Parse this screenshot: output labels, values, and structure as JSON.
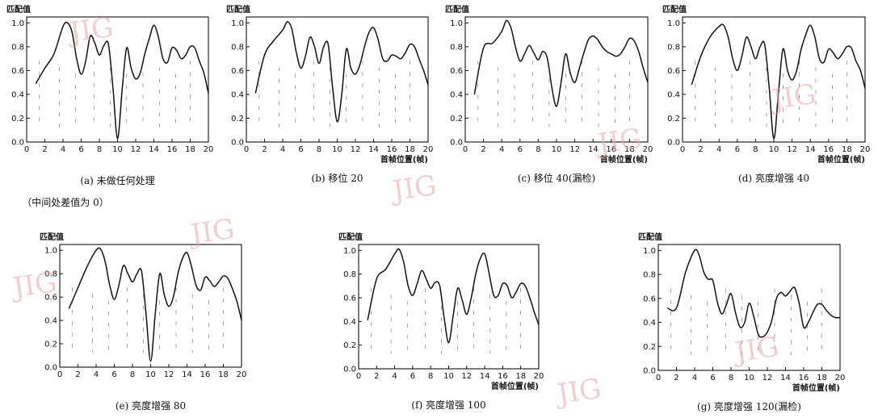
{
  "chart_data": [
    {
      "type": "line",
      "ylabel": "匹配值",
      "xlabel": "",
      "caption": "(a) 未做任何处理",
      "caption2": "（中间处差值为 0）",
      "x_ticks": [
        "0",
        "2",
        "4",
        "6",
        "8",
        "10",
        "12",
        "14",
        "16",
        "18",
        "20"
      ],
      "y_ticks": [
        "0.0",
        "0.2",
        "0.4",
        "0.6",
        "0.8",
        "1.0"
      ],
      "xlim": [
        0,
        20
      ],
      "ylim": [
        0,
        1.05
      ],
      "x": [
        1,
        2,
        3,
        4,
        4.5,
        5,
        5.5,
        6,
        6.5,
        7,
        7.5,
        8,
        8.5,
        9,
        9.5,
        10,
        10.5,
        11,
        11.5,
        12,
        12.5,
        13,
        13.5,
        14,
        14.5,
        15,
        15.5,
        16,
        16.5,
        17,
        17.5,
        18,
        18.5,
        19,
        19.5,
        20
      ],
      "y": [
        0.49,
        0.62,
        0.74,
        0.97,
        1.0,
        0.92,
        0.7,
        0.57,
        0.68,
        0.89,
        0.83,
        0.73,
        0.81,
        0.82,
        0.45,
        0.03,
        0.43,
        0.79,
        0.62,
        0.53,
        0.58,
        0.74,
        0.87,
        0.98,
        0.88,
        0.7,
        0.67,
        0.79,
        0.77,
        0.7,
        0.73,
        0.8,
        0.79,
        0.68,
        0.58,
        0.41
      ]
    },
    {
      "type": "line",
      "ylabel": "匹配值",
      "xlabel": "首帧位置(帧)",
      "caption": "(b) 移位 20",
      "x_ticks": [
        "0",
        "2",
        "4",
        "6",
        "8",
        "10",
        "12",
        "14",
        "16",
        "18",
        "20"
      ],
      "y_ticks": [
        "0.0",
        "0.2",
        "0.4",
        "0.6",
        "0.8",
        "1.0"
      ],
      "xlim": [
        0,
        20
      ],
      "ylim": [
        0,
        1.05
      ],
      "x": [
        1,
        2,
        3,
        4,
        4.5,
        5,
        5.5,
        6,
        6.5,
        7,
        7.5,
        8,
        8.5,
        9,
        9.5,
        10,
        10.5,
        11,
        11.5,
        12,
        12.5,
        13,
        13.5,
        14,
        14.5,
        15,
        15.5,
        16,
        16.5,
        17,
        17.5,
        18,
        18.5,
        19,
        19.5,
        20
      ],
      "y": [
        0.41,
        0.73,
        0.85,
        0.94,
        1.01,
        0.95,
        0.75,
        0.62,
        0.72,
        0.88,
        0.8,
        0.66,
        0.8,
        0.82,
        0.45,
        0.17,
        0.4,
        0.78,
        0.62,
        0.57,
        0.65,
        0.8,
        0.92,
        0.96,
        0.86,
        0.7,
        0.68,
        0.73,
        0.72,
        0.7,
        0.75,
        0.82,
        0.8,
        0.7,
        0.6,
        0.48
      ]
    },
    {
      "type": "line",
      "ylabel": "匹配值",
      "xlabel": "首帧位置(帧)",
      "caption": "(c) 移位 40(漏检)",
      "x_ticks": [
        "0",
        "2",
        "4",
        "6",
        "8",
        "10",
        "12",
        "14",
        "16",
        "18",
        "20"
      ],
      "y_ticks": [
        "0.0",
        "0.2",
        "0.4",
        "0.6",
        "0.8",
        "1.0"
      ],
      "xlim": [
        0,
        20
      ],
      "ylim": [
        0,
        1.05
      ],
      "x": [
        1,
        2,
        3,
        4,
        4.5,
        5,
        5.5,
        6,
        6.5,
        7,
        7.5,
        8,
        8.5,
        9,
        9.5,
        10,
        10.5,
        11,
        11.5,
        12,
        12.5,
        13,
        13.5,
        14,
        14.5,
        15,
        15.5,
        16,
        16.5,
        17,
        17.5,
        18,
        18.5,
        19,
        19.5,
        20
      ],
      "y": [
        0.4,
        0.79,
        0.83,
        0.93,
        1.02,
        0.96,
        0.8,
        0.68,
        0.74,
        0.81,
        0.75,
        0.69,
        0.76,
        0.7,
        0.45,
        0.3,
        0.5,
        0.74,
        0.58,
        0.5,
        0.62,
        0.75,
        0.86,
        0.89,
        0.86,
        0.8,
        0.76,
        0.74,
        0.72,
        0.74,
        0.8,
        0.87,
        0.85,
        0.76,
        0.62,
        0.5
      ]
    },
    {
      "type": "line",
      "ylabel": "匹配值",
      "xlabel": "首帧位置(帧)",
      "caption": "(d) 亮度增强 40",
      "x_ticks": [
        "0",
        "2",
        "4",
        "6",
        "8",
        "10",
        "12",
        "14",
        "16",
        "18",
        "20"
      ],
      "y_ticks": [
        "0.0",
        "0.2",
        "0.4",
        "0.6",
        "0.8",
        "1.0"
      ],
      "xlim": [
        0,
        20
      ],
      "ylim": [
        0,
        1.05
      ],
      "x": [
        1,
        2,
        3,
        4,
        4.5,
        5,
        5.5,
        6,
        6.5,
        7,
        7.5,
        8,
        8.5,
        9,
        9.5,
        10,
        10.5,
        11,
        11.5,
        12,
        12.5,
        13,
        13.5,
        14,
        14.5,
        15,
        15.5,
        16,
        16.5,
        17,
        17.5,
        18,
        18.5,
        19,
        19.5,
        20
      ],
      "y": [
        0.48,
        0.72,
        0.88,
        0.97,
        0.98,
        0.88,
        0.7,
        0.6,
        0.72,
        0.88,
        0.8,
        0.7,
        0.8,
        0.82,
        0.45,
        0.03,
        0.4,
        0.78,
        0.6,
        0.52,
        0.6,
        0.78,
        0.9,
        0.98,
        0.88,
        0.7,
        0.67,
        0.78,
        0.75,
        0.7,
        0.74,
        0.8,
        0.79,
        0.68,
        0.6,
        0.45
      ]
    },
    {
      "type": "line",
      "ylabel": "匹配值",
      "xlabel": "",
      "caption": "(e) 亮度增强 80",
      "x_ticks": [
        "0",
        "2",
        "4",
        "6",
        "8",
        "10",
        "12",
        "14",
        "16",
        "18",
        "20"
      ],
      "y_ticks": [
        "0.0",
        "0.2",
        "0.4",
        "0.6",
        "0.8",
        "1.0"
      ],
      "xlim": [
        0,
        20
      ],
      "ylim": [
        0,
        1.05
      ],
      "x": [
        1,
        2,
        3,
        4,
        4.5,
        5,
        5.5,
        6,
        6.5,
        7,
        7.5,
        8,
        8.5,
        9,
        9.5,
        10,
        10.5,
        11,
        11.5,
        12,
        12.5,
        13,
        13.5,
        14,
        14.5,
        15,
        15.5,
        16,
        16.5,
        17,
        17.5,
        18,
        18.5,
        19,
        19.5,
        20
      ],
      "y": [
        0.5,
        0.68,
        0.86,
        1.0,
        1.01,
        0.9,
        0.7,
        0.58,
        0.7,
        0.87,
        0.8,
        0.73,
        0.8,
        0.82,
        0.45,
        0.05,
        0.45,
        0.8,
        0.62,
        0.52,
        0.6,
        0.8,
        0.93,
        0.98,
        0.86,
        0.7,
        0.66,
        0.77,
        0.74,
        0.69,
        0.73,
        0.78,
        0.76,
        0.67,
        0.56,
        0.4
      ]
    },
    {
      "type": "line",
      "ylabel": "匹配值",
      "xlabel": "首帧位置(帧)",
      "caption": "(f) 亮度增强 100",
      "x_ticks": [
        "0",
        "2",
        "4",
        "6",
        "8",
        "10",
        "12",
        "14",
        "16",
        "18",
        "20"
      ],
      "y_ticks": [
        "0.0",
        "0.2",
        "0.4",
        "0.6",
        "0.8",
        "1.0"
      ],
      "xlim": [
        0,
        20
      ],
      "ylim": [
        0,
        1.05
      ],
      "x": [
        1,
        2,
        3,
        4,
        4.5,
        5,
        5.5,
        6,
        6.5,
        7,
        7.5,
        8,
        8.5,
        9,
        9.5,
        10,
        10.5,
        11,
        11.5,
        12,
        12.5,
        13,
        13.5,
        14,
        14.5,
        15,
        15.5,
        16,
        16.5,
        17,
        17.5,
        18,
        18.5,
        19,
        19.5,
        20
      ],
      "y": [
        0.41,
        0.76,
        0.84,
        0.97,
        1.01,
        0.9,
        0.7,
        0.62,
        0.72,
        0.83,
        0.76,
        0.68,
        0.73,
        0.7,
        0.43,
        0.22,
        0.45,
        0.68,
        0.58,
        0.46,
        0.6,
        0.8,
        0.93,
        0.97,
        0.8,
        0.62,
        0.62,
        0.72,
        0.7,
        0.6,
        0.65,
        0.72,
        0.7,
        0.6,
        0.48,
        0.37
      ]
    },
    {
      "type": "line",
      "ylabel": "匹配值",
      "xlabel": "首帧位置(帧)",
      "caption": "(g) 亮度增强 120(漏检)",
      "x_ticks": [
        "0",
        "2",
        "4",
        "6",
        "8",
        "10",
        "12",
        "14",
        "16",
        "18",
        "20"
      ],
      "y_ticks": [
        "0.0",
        "0.2",
        "0.4",
        "0.6",
        "0.8",
        "1.0"
      ],
      "xlim": [
        0,
        20
      ],
      "ylim": [
        0,
        1.05
      ],
      "x": [
        1,
        2,
        3,
        4,
        4.5,
        5,
        5.5,
        6,
        6.5,
        7,
        7.5,
        8,
        8.5,
        9,
        9.5,
        10,
        10.5,
        11,
        11.5,
        12,
        12.5,
        13,
        13.5,
        14,
        14.5,
        15,
        15.5,
        16,
        16.5,
        17,
        17.5,
        18,
        18.5,
        19,
        19.5,
        20
      ],
      "y": [
        0.52,
        0.52,
        0.82,
        1.0,
        0.96,
        0.82,
        0.76,
        0.75,
        0.57,
        0.47,
        0.55,
        0.64,
        0.48,
        0.36,
        0.4,
        0.56,
        0.45,
        0.3,
        0.28,
        0.32,
        0.42,
        0.6,
        0.65,
        0.62,
        0.66,
        0.69,
        0.56,
        0.36,
        0.4,
        0.48,
        0.55,
        0.55,
        0.5,
        0.46,
        0.44,
        0.44
      ]
    }
  ],
  "watermark": "JIG"
}
